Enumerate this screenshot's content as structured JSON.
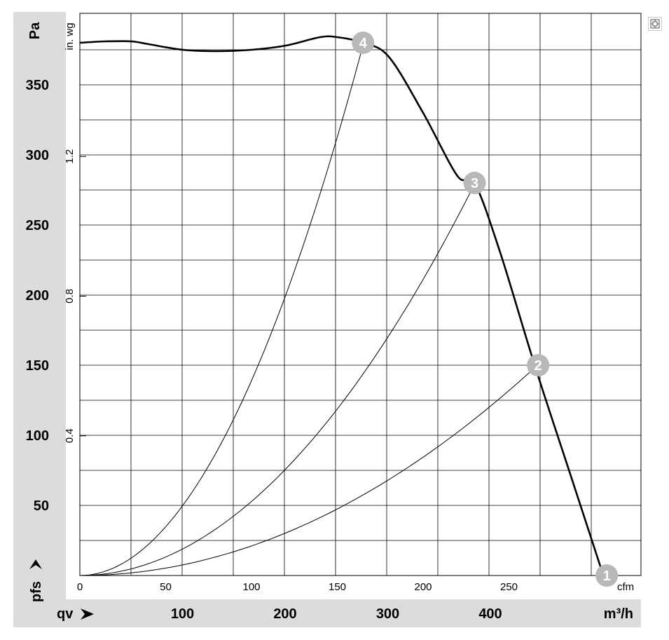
{
  "chart_data": {
    "type": "line",
    "left_axis": {
      "label": "Pa",
      "ticks": [
        50,
        100,
        150,
        200,
        250,
        300,
        350
      ],
      "range": [
        0,
        400
      ]
    },
    "inner_axis": {
      "label": "in. wg",
      "ticks": [
        "0.4",
        "0.8",
        "1.2"
      ]
    },
    "bottom_axis": {
      "label": "cfm",
      "ticks": [
        0,
        50,
        100,
        150,
        200,
        250
      ],
      "range": [
        0,
        325
      ]
    },
    "second_x_axis": {
      "label": "m³/h",
      "prefix": "qv",
      "ticks": [
        100,
        200,
        300,
        400
      ]
    },
    "pressure_label": "pfs",
    "grid": true,
    "series": [
      {
        "id": "fan-curve",
        "x": [
          0,
          15,
          30,
          40,
          60,
          80,
          100,
          120,
          140,
          150,
          165,
          180,
          200,
          220,
          230,
          245,
          265,
          285,
          305
        ],
        "y": [
          380,
          381,
          381,
          379,
          375,
          374,
          375,
          378,
          384,
          384,
          380,
          370,
          330,
          285,
          280,
          230,
          150,
          75,
          0
        ]
      },
      {
        "id": "system-4",
        "k": 0.0139,
        "x_end": 165
      },
      {
        "id": "system-3",
        "k": 0.00528,
        "x_end": 230
      },
      {
        "id": "system-2",
        "k": 0.00211,
        "x_end": 267
      }
    ],
    "operating_points": [
      {
        "label": "1",
        "x": 307,
        "y": 0
      },
      {
        "label": "2",
        "x": 267,
        "y": 150
      },
      {
        "label": "3",
        "x": 230,
        "y": 280
      },
      {
        "label": "4",
        "x": 165,
        "y": 380
      }
    ]
  },
  "controls": {
    "expand_icon": "expand-icon"
  }
}
